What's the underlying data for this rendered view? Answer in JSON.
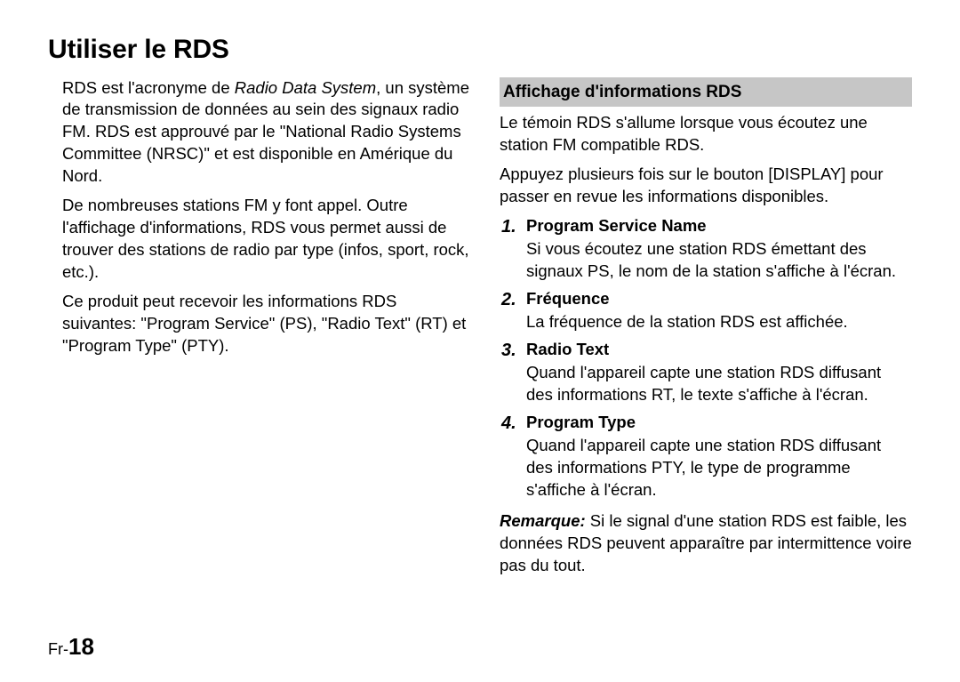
{
  "title": "Utiliser le RDS",
  "left": {
    "p1_part1": "RDS est l'acronyme de ",
    "p1_italic": "Radio Data System",
    "p1_part2": ", un système de transmission de données au sein des signaux radio FM. RDS est approuvé par le \"National Radio Systems Committee (NRSC)\" et est disponible en Amérique du Nord.",
    "p2": "De nombreuses stations FM y font appel. Outre l'affichage d'informations, RDS vous permet aussi de trouver des stations de radio par type (infos, sport, rock, etc.).",
    "p3": "Ce produit peut recevoir les informations RDS suivantes: \"Program Service\" (PS), \"Radio Text\" (RT) et \"Program Type\" (PTY)."
  },
  "right": {
    "subhead": "Affichage d'informations RDS",
    "intro1": "Le témoin RDS s'allume lorsque vous écoutez une station FM compatible RDS.",
    "intro2": "Appuyez plusieurs fois sur le bouton [DISPLAY] pour passer en revue les informations disponibles.",
    "items": [
      {
        "num": "1.",
        "title": "Program Service Name",
        "desc": "Si vous écoutez une station RDS émettant des signaux PS, le nom de la station s'affiche à l'écran."
      },
      {
        "num": "2.",
        "title": "Fréquence",
        "desc": "La fréquence de la station RDS est affichée."
      },
      {
        "num": "3.",
        "title": "Radio Text",
        "desc": "Quand l'appareil capte une station RDS diffusant des informations RT, le texte s'affiche à l'écran."
      },
      {
        "num": "4.",
        "title": "Program Type",
        "desc": "Quand l'appareil capte une station RDS diffusant des informations PTY, le type de programme s'affiche à l'écran."
      }
    ],
    "remark_label": "Remarque:",
    "remark_text": " Si le signal d'une station RDS est faible, les données RDS peuvent apparaître par intermittence voire pas du tout."
  },
  "page": {
    "prefix": "Fr-",
    "num": "18"
  }
}
